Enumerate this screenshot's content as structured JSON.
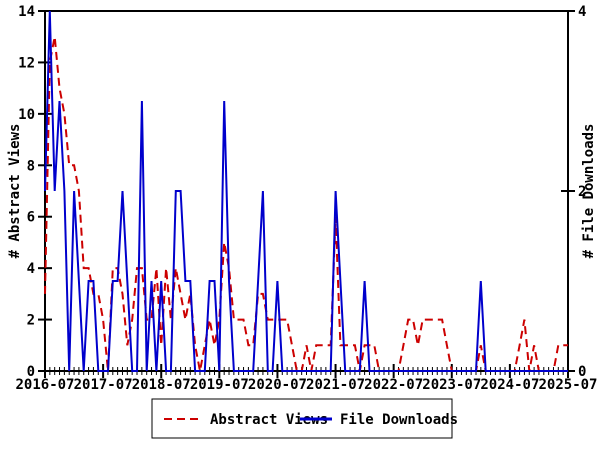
{
  "chart_data": {
    "type": "line",
    "title": "",
    "x_axis": {
      "major_tick_labels": [
        "2016-07",
        "2017-07",
        "2018-07",
        "2019-07",
        "2020-07",
        "2021-07",
        "2022-07",
        "2023-07",
        "2024-07",
        "2025-07"
      ],
      "minor_tick_interval_months": 1,
      "major_tick_interval_months": 12
    },
    "y_left": {
      "label": "# Abstract Views",
      "min": 0,
      "max": 14,
      "tick_step": 2,
      "ticks": [
        0,
        2,
        4,
        6,
        8,
        10,
        12,
        14
      ]
    },
    "y_right": {
      "label": "# File Downloads",
      "min": 0,
      "max": 4,
      "tick_step": 2,
      "ticks": [
        0,
        2,
        4
      ]
    },
    "grid": false,
    "legend_position": "bottom-center",
    "x_months": [
      "2016-07",
      "2016-08",
      "2016-09",
      "2016-10",
      "2016-11",
      "2016-12",
      "2017-01",
      "2017-02",
      "2017-03",
      "2017-04",
      "2017-05",
      "2017-06",
      "2017-07",
      "2017-08",
      "2017-09",
      "2017-10",
      "2017-11",
      "2017-12",
      "2018-01",
      "2018-02",
      "2018-03",
      "2018-04",
      "2018-05",
      "2018-06",
      "2018-07",
      "2018-08",
      "2018-09",
      "2018-10",
      "2018-11",
      "2018-12",
      "2019-01",
      "2019-02",
      "2019-03",
      "2019-04",
      "2019-05",
      "2019-06",
      "2019-07",
      "2019-08",
      "2019-09",
      "2019-10",
      "2019-11",
      "2019-12",
      "2020-01",
      "2020-02",
      "2020-03",
      "2020-04",
      "2020-05",
      "2020-06",
      "2020-07",
      "2020-08",
      "2020-09",
      "2020-10",
      "2020-11",
      "2020-12",
      "2021-01",
      "2021-02",
      "2021-03",
      "2021-04",
      "2021-05",
      "2021-06",
      "2021-07",
      "2021-08",
      "2021-09",
      "2021-10",
      "2021-11",
      "2021-12",
      "2022-01",
      "2022-02",
      "2022-03",
      "2022-04",
      "2022-05",
      "2022-06",
      "2022-07",
      "2022-08",
      "2022-09",
      "2022-10",
      "2022-11",
      "2022-12",
      "2023-01",
      "2023-02",
      "2023-03",
      "2023-04",
      "2023-05",
      "2023-06",
      "2023-07",
      "2023-08",
      "2023-09",
      "2023-10",
      "2023-11",
      "2023-12",
      "2024-01",
      "2024-02",
      "2024-03",
      "2024-04",
      "2024-05",
      "2024-06",
      "2024-07",
      "2024-08",
      "2024-09",
      "2024-10",
      "2024-11",
      "2024-12",
      "2025-01",
      "2025-02",
      "2025-03",
      "2025-04",
      "2025-05",
      "2025-06",
      "2025-07"
    ],
    "series": [
      {
        "name": "Abstract Views",
        "axis": "left",
        "color": "#cc0000",
        "style": "dashed",
        "values": [
          3,
          12,
          13,
          11,
          10,
          8,
          8,
          7,
          4,
          4,
          3,
          3,
          2,
          0,
          4,
          4,
          3,
          1,
          2,
          4,
          4,
          2,
          2,
          4,
          1,
          4,
          2,
          4,
          3,
          2,
          3,
          1,
          0,
          1,
          2,
          1,
          2,
          5,
          4,
          2,
          2,
          2,
          1,
          1,
          3,
          3,
          2,
          2,
          2,
          2,
          2,
          1,
          0,
          0,
          1,
          0,
          1,
          1,
          1,
          1,
          6,
          1,
          1,
          1,
          1,
          0,
          1,
          1,
          1,
          0,
          0,
          0,
          0,
          0,
          1,
          2,
          2,
          1,
          2,
          2,
          2,
          2,
          2,
          1,
          0,
          0,
          0,
          0,
          0,
          0,
          1,
          0,
          0,
          0,
          0,
          0,
          0,
          0,
          1,
          2,
          0,
          1,
          0,
          0,
          0,
          0,
          1,
          1,
          1
        ]
      },
      {
        "name": "File Downloads",
        "axis": "right",
        "color": "#0000cc",
        "style": "solid",
        "values": [
          2,
          4,
          2,
          3,
          2,
          0,
          2,
          1,
          0,
          1,
          1,
          0,
          0,
          0,
          1,
          1,
          2,
          1,
          0,
          0,
          3,
          0,
          1,
          0,
          1,
          0,
          0,
          2,
          2,
          1,
          1,
          0,
          0,
          0,
          1,
          1,
          0,
          3,
          1,
          0,
          0,
          0,
          0,
          0,
          1,
          2,
          0,
          0,
          1,
          0,
          0,
          0,
          0,
          0,
          0,
          0,
          0,
          0,
          0,
          0,
          2,
          1,
          0,
          0,
          0,
          0,
          1,
          0,
          0,
          0,
          0,
          0,
          0,
          0,
          0,
          0,
          0,
          0,
          0,
          0,
          0,
          0,
          0,
          0,
          0,
          0,
          0,
          0,
          0,
          0,
          1,
          0,
          0,
          0,
          0,
          0,
          0,
          0,
          0,
          0,
          0,
          0,
          0,
          0,
          0,
          0,
          0,
          0,
          0
        ]
      }
    ]
  },
  "legend": {
    "abstract_views_label": "Abstract Views",
    "file_downloads_label": "File Downloads"
  },
  "axes_labels": {
    "left": "# Abstract Views",
    "right": "# File Downloads"
  },
  "colors": {
    "abstract_views": "#cc0000",
    "file_downloads": "#0000cc",
    "axis": "#000000",
    "background": "#ffffff"
  }
}
